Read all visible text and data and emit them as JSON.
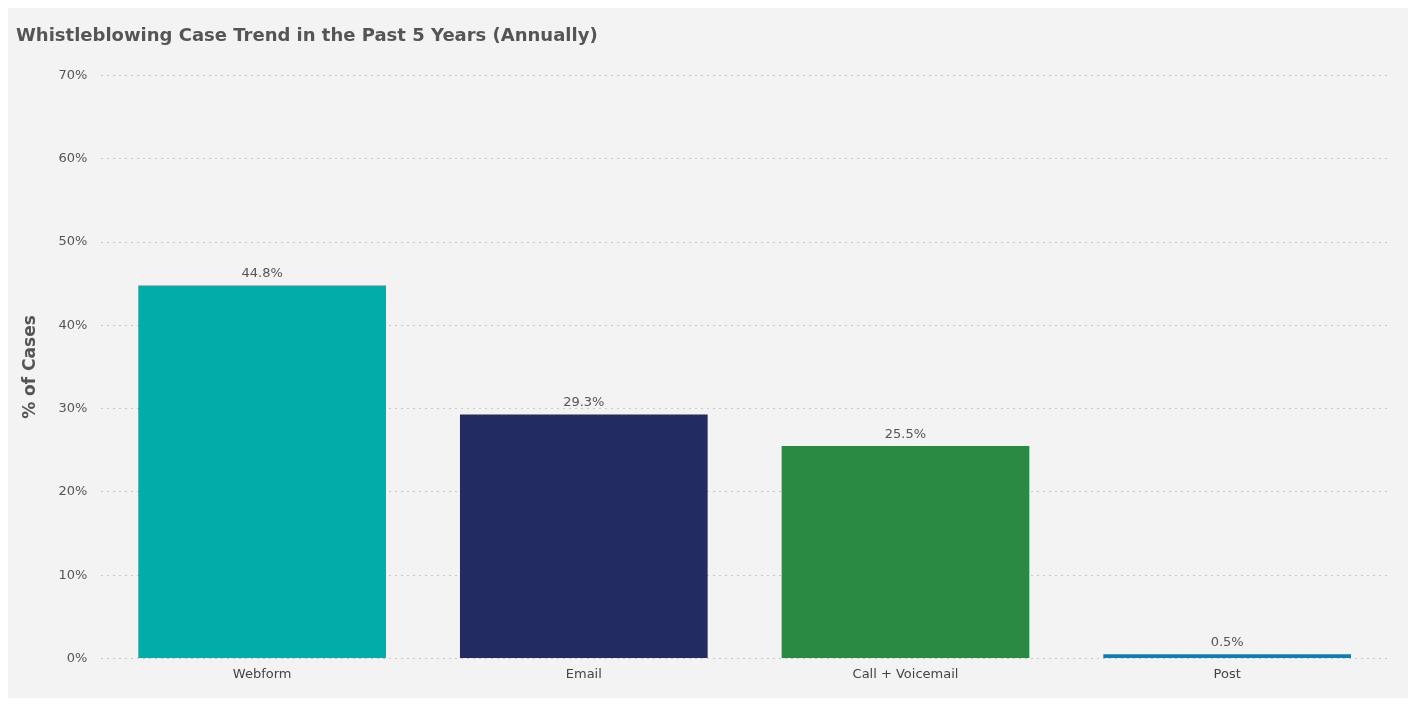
{
  "chart_data": {
    "type": "bar",
    "title": "Whistleblowing Case Trend in the Past 5 Years (Annually)",
    "ylabel": "% of Cases",
    "categories": [
      "Webform",
      "Email",
      "Call + Voicemail",
      "Post"
    ],
    "values": [
      44.8,
      29.3,
      25.5,
      0.5
    ],
    "colors": [
      "#01aca9",
      "#222b62",
      "#2a8a44",
      "#0a7fb5"
    ],
    "value_labels": [
      "44.8%",
      "29.3%",
      "25.5%",
      "0.5%"
    ],
    "ylim": [
      0,
      70
    ],
    "yticks": [
      {
        "value": 0,
        "label": "0%"
      },
      {
        "value": 10,
        "label": "10%"
      },
      {
        "value": 20,
        "label": "20%"
      },
      {
        "value": 30,
        "label": "30%"
      },
      {
        "value": 40,
        "label": "40%"
      },
      {
        "value": 50,
        "label": "50%"
      },
      {
        "value": 60,
        "label": "60%"
      },
      {
        "value": 70,
        "label": "70%"
      }
    ],
    "grid": "y",
    "legend": false
  }
}
